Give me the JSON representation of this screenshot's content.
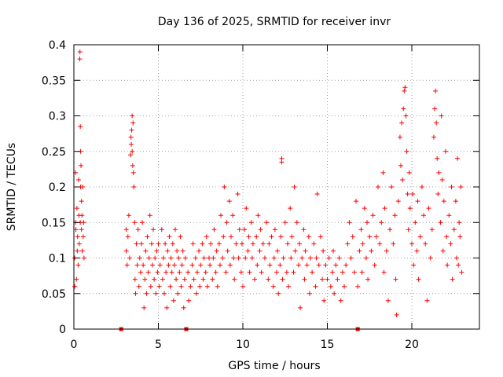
{
  "chart_data": {
    "type": "scatter",
    "title": "Day 136 of 2025, SRMTID for receiver invr",
    "xlabel": "GPS time / hours",
    "ylabel": "SRMTID / TECUs",
    "xlim": [
      0,
      24
    ],
    "ylim": [
      0,
      0.4
    ],
    "grid": true,
    "marker": "+",
    "color": "#ff0000",
    "x_ticks": [
      {
        "value": 0,
        "label": "0"
      },
      {
        "value": 5,
        "label": "5"
      },
      {
        "value": 10,
        "label": "10"
      },
      {
        "value": 15,
        "label": "15"
      },
      {
        "value": 20,
        "label": "20"
      }
    ],
    "y_ticks": [
      {
        "value": 0,
        "label": "0"
      },
      {
        "value": 0.05,
        "label": "0.05"
      },
      {
        "value": 0.1,
        "label": "0.1"
      },
      {
        "value": 0.15,
        "label": "0.15"
      },
      {
        "value": 0.2,
        "label": "0.2"
      },
      {
        "value": 0.25,
        "label": "0.25"
      },
      {
        "value": 0.3,
        "label": "0.3"
      },
      {
        "value": 0.35,
        "label": "0.35"
      },
      {
        "value": 0.4,
        "label": "0.4"
      }
    ],
    "data_gap_markers_x": [
      2.8,
      6.65,
      16.8
    ],
    "points": [
      [
        0.05,
        0.06
      ],
      [
        0.05,
        0.1
      ],
      [
        0.1,
        0.15
      ],
      [
        0.1,
        0.22
      ],
      [
        0.12,
        0.14
      ],
      [
        0.15,
        0.07
      ],
      [
        0.18,
        0.17
      ],
      [
        0.2,
        0.11
      ],
      [
        0.22,
        0.13
      ],
      [
        0.25,
        0.09
      ],
      [
        0.28,
        0.21
      ],
      [
        0.3,
        0.16
      ],
      [
        0.32,
        0.12
      ],
      [
        0.35,
        0.38
      ],
      [
        0.36,
        0.39
      ],
      [
        0.38,
        0.285
      ],
      [
        0.38,
        0.15
      ],
      [
        0.4,
        0.2
      ],
      [
        0.4,
        0.25
      ],
      [
        0.42,
        0.23
      ],
      [
        0.45,
        0.18
      ],
      [
        0.45,
        0.14
      ],
      [
        0.48,
        0.16
      ],
      [
        0.5,
        0.11
      ],
      [
        0.52,
        0.2
      ],
      [
        0.55,
        0.13
      ],
      [
        0.58,
        0.15
      ],
      [
        0.6,
        0.1
      ],
      [
        3.1,
        0.14
      ],
      [
        3.1,
        0.11
      ],
      [
        3.15,
        0.09
      ],
      [
        3.2,
        0.13
      ],
      [
        3.25,
        0.16
      ],
      [
        3.3,
        0.1
      ],
      [
        3.35,
        0.245
      ],
      [
        3.38,
        0.27
      ],
      [
        3.4,
        0.26
      ],
      [
        3.42,
        0.28
      ],
      [
        3.45,
        0.3
      ],
      [
        3.45,
        0.25
      ],
      [
        3.48,
        0.23
      ],
      [
        3.5,
        0.29
      ],
      [
        3.52,
        0.22
      ],
      [
        3.55,
        0.2
      ],
      [
        3.6,
        0.15
      ],
      [
        3.62,
        0.07
      ],
      [
        3.65,
        0.05
      ],
      [
        3.7,
        0.12
      ],
      [
        3.75,
        0.09
      ],
      [
        3.8,
        0.14
      ],
      [
        3.85,
        0.06
      ],
      [
        3.9,
        0.1
      ],
      [
        3.95,
        0.08
      ],
      [
        4.0,
        0.12
      ],
      [
        4.05,
        0.15
      ],
      [
        4.1,
        0.09
      ],
      [
        4.15,
        0.03
      ],
      [
        4.2,
        0.07
      ],
      [
        4.25,
        0.11
      ],
      [
        4.3,
        0.05
      ],
      [
        4.35,
        0.13
      ],
      [
        4.4,
        0.08
      ],
      [
        4.45,
        0.1
      ],
      [
        4.5,
        0.16
      ],
      [
        4.55,
        0.06
      ],
      [
        4.6,
        0.12
      ],
      [
        4.65,
        0.09
      ],
      [
        4.7,
        0.14
      ],
      [
        4.75,
        0.07
      ],
      [
        4.8,
        0.1
      ],
      [
        4.85,
        0.05
      ],
      [
        4.9,
        0.11
      ],
      [
        4.95,
        0.08
      ],
      [
        5.0,
        0.12
      ],
      [
        5.05,
        0.06
      ],
      [
        5.1,
        0.09
      ],
      [
        5.2,
        0.14
      ],
      [
        5.25,
        0.07
      ],
      [
        5.3,
        0.1
      ],
      [
        5.35,
        0.05
      ],
      [
        5.4,
        0.12
      ],
      [
        5.45,
        0.08
      ],
      [
        5.5,
        0.03
      ],
      [
        5.55,
        0.11
      ],
      [
        5.6,
        0.09
      ],
      [
        5.65,
        0.13
      ],
      [
        5.7,
        0.06
      ],
      [
        5.75,
        0.1
      ],
      [
        5.8,
        0.08
      ],
      [
        5.85,
        0.12
      ],
      [
        5.9,
        0.04
      ],
      [
        5.95,
        0.09
      ],
      [
        6.0,
        0.14
      ],
      [
        6.05,
        0.07
      ],
      [
        6.1,
        0.11
      ],
      [
        6.15,
        0.05
      ],
      [
        6.2,
        0.1
      ],
      [
        6.25,
        0.08
      ],
      [
        6.3,
        0.13
      ],
      [
        6.35,
        0.06
      ],
      [
        6.4,
        0.09
      ],
      [
        6.45,
        0.11
      ],
      [
        6.5,
        0.03
      ],
      [
        6.55,
        0.07
      ],
      [
        6.6,
        0.1
      ],
      [
        6.75,
        0.08
      ],
      [
        6.8,
        0.04
      ],
      [
        6.9,
        0.06
      ],
      [
        7.0,
        0.09
      ],
      [
        7.05,
        0.12
      ],
      [
        7.1,
        0.07
      ],
      [
        7.2,
        0.1
      ],
      [
        7.25,
        0.05
      ],
      [
        7.3,
        0.08
      ],
      [
        7.4,
        0.11
      ],
      [
        7.45,
        0.06
      ],
      [
        7.5,
        0.09
      ],
      [
        7.6,
        0.12
      ],
      [
        7.65,
        0.07
      ],
      [
        7.7,
        0.1
      ],
      [
        7.8,
        0.08
      ],
      [
        7.85,
        0.13
      ],
      [
        7.9,
        0.06
      ],
      [
        8.0,
        0.1
      ],
      [
        8.05,
        0.09
      ],
      [
        8.1,
        0.12
      ],
      [
        8.2,
        0.07
      ],
      [
        8.25,
        0.1
      ],
      [
        8.3,
        0.14
      ],
      [
        8.4,
        0.08
      ],
      [
        8.45,
        0.11
      ],
      [
        8.5,
        0.06
      ],
      [
        8.6,
        0.12
      ],
      [
        8.65,
        0.09
      ],
      [
        8.7,
        0.16
      ],
      [
        8.8,
        0.1
      ],
      [
        8.85,
        0.13
      ],
      [
        8.9,
        0.2
      ],
      [
        9.0,
        0.08
      ],
      [
        9.05,
        0.15
      ],
      [
        9.1,
        0.11
      ],
      [
        9.2,
        0.18
      ],
      [
        9.25,
        0.09
      ],
      [
        9.3,
        0.13
      ],
      [
        9.4,
        0.16
      ],
      [
        9.45,
        0.1
      ],
      [
        9.5,
        0.07
      ],
      [
        9.6,
        0.12
      ],
      [
        9.7,
        0.19
      ],
      [
        9.75,
        0.1
      ],
      [
        9.8,
        0.14
      ],
      [
        9.9,
        0.08
      ],
      [
        9.95,
        0.12
      ],
      [
        10.0,
        0.06
      ],
      [
        10.1,
        0.14
      ],
      [
        10.15,
        0.1
      ],
      [
        10.2,
        0.17
      ],
      [
        10.3,
        0.11
      ],
      [
        10.35,
        0.13
      ],
      [
        10.4,
        0.08
      ],
      [
        10.5,
        0.15
      ],
      [
        10.55,
        0.1
      ],
      [
        10.6,
        0.12
      ],
      [
        10.7,
        0.07
      ],
      [
        10.8,
        0.13
      ],
      [
        10.85,
        0.09
      ],
      [
        10.9,
        0.16
      ],
      [
        11.0,
        0.11
      ],
      [
        11.05,
        0.14
      ],
      [
        11.1,
        0.08
      ],
      [
        11.2,
        0.12
      ],
      [
        11.3,
        0.1
      ],
      [
        11.4,
        0.15
      ],
      [
        11.5,
        0.07
      ],
      [
        11.55,
        0.12
      ],
      [
        11.6,
        0.09
      ],
      [
        11.7,
        0.13
      ],
      [
        11.8,
        0.06
      ],
      [
        11.85,
        0.1
      ],
      [
        11.9,
        0.14
      ],
      [
        12.0,
        0.08
      ],
      [
        12.05,
        0.11
      ],
      [
        12.1,
        0.05
      ],
      [
        12.2,
        0.09
      ],
      [
        12.25,
        0.13
      ],
      [
        12.3,
        0.24
      ],
      [
        12.3,
        0.235
      ],
      [
        12.35,
        0.07
      ],
      [
        12.4,
        0.1
      ],
      [
        12.5,
        0.15
      ],
      [
        12.6,
        0.08
      ],
      [
        12.65,
        0.12
      ],
      [
        12.7,
        0.06
      ],
      [
        12.8,
        0.17
      ],
      [
        12.85,
        0.1
      ],
      [
        12.9,
        0.13
      ],
      [
        13.0,
        0.08
      ],
      [
        13.05,
        0.2
      ],
      [
        13.1,
        0.11
      ],
      [
        13.2,
        0.15
      ],
      [
        13.3,
        0.09
      ],
      [
        13.35,
        0.12
      ],
      [
        13.4,
        0.03
      ],
      [
        13.5,
        0.1
      ],
      [
        13.6,
        0.14
      ],
      [
        13.65,
        0.07
      ],
      [
        13.7,
        0.11
      ],
      [
        13.8,
        0.09
      ],
      [
        13.9,
        0.13
      ],
      [
        13.95,
        0.05
      ],
      [
        14.0,
        0.1
      ],
      [
        14.1,
        0.08
      ],
      [
        14.2,
        0.12
      ],
      [
        14.3,
        0.06
      ],
      [
        14.35,
        0.1
      ],
      [
        14.4,
        0.19
      ],
      [
        14.5,
        0.09
      ],
      [
        14.6,
        0.13
      ],
      [
        14.7,
        0.07
      ],
      [
        14.75,
        0.11
      ],
      [
        14.8,
        0.04
      ],
      [
        14.9,
        0.09
      ],
      [
        15.0,
        0.07
      ],
      [
        15.1,
        0.1
      ],
      [
        15.2,
        0.06
      ],
      [
        15.3,
        0.08
      ],
      [
        15.35,
        0.11
      ],
      [
        15.4,
        0.05
      ],
      [
        15.5,
        0.09
      ],
      [
        15.6,
        0.07
      ],
      [
        15.7,
        0.1
      ],
      [
        15.8,
        0.04
      ],
      [
        15.9,
        0.08
      ],
      [
        16.0,
        0.06
      ],
      [
        16.1,
        0.09
      ],
      [
        16.2,
        0.12
      ],
      [
        16.3,
        0.15
      ],
      [
        16.4,
        0.1
      ],
      [
        16.5,
        0.13
      ],
      [
        16.6,
        0.08
      ],
      [
        16.7,
        0.18
      ],
      [
        16.8,
        0.06
      ],
      [
        16.9,
        0.11
      ],
      [
        17.0,
        0.14
      ],
      [
        17.05,
        0.08
      ],
      [
        17.1,
        0.12
      ],
      [
        17.2,
        0.17
      ],
      [
        17.3,
        0.1
      ],
      [
        17.35,
        0.15
      ],
      [
        17.4,
        0.07
      ],
      [
        17.5,
        0.13
      ],
      [
        17.6,
        0.11
      ],
      [
        17.7,
        0.16
      ],
      [
        17.8,
        0.09
      ],
      [
        17.9,
        0.13
      ],
      [
        18.0,
        0.2
      ],
      [
        18.1,
        0.12
      ],
      [
        18.2,
        0.15
      ],
      [
        18.3,
        0.22
      ],
      [
        18.35,
        0.08
      ],
      [
        18.4,
        0.17
      ],
      [
        18.5,
        0.11
      ],
      [
        18.6,
        0.04
      ],
      [
        18.7,
        0.14
      ],
      [
        18.8,
        0.2
      ],
      [
        18.9,
        0.12
      ],
      [
        19.0,
        0.16
      ],
      [
        19.05,
        0.07
      ],
      [
        19.1,
        0.02
      ],
      [
        19.2,
        0.18
      ],
      [
        19.3,
        0.27
      ],
      [
        19.35,
        0.23
      ],
      [
        19.4,
        0.29
      ],
      [
        19.45,
        0.21
      ],
      [
        19.5,
        0.31
      ],
      [
        19.55,
        0.335
      ],
      [
        19.6,
        0.34
      ],
      [
        19.65,
        0.3
      ],
      [
        19.7,
        0.25
      ],
      [
        19.75,
        0.19
      ],
      [
        19.8,
        0.14
      ],
      [
        19.85,
        0.22
      ],
      [
        19.9,
        0.17
      ],
      [
        20.0,
        0.12
      ],
      [
        20.05,
        0.19
      ],
      [
        20.1,
        0.09
      ],
      [
        20.2,
        0.15
      ],
      [
        20.3,
        0.11
      ],
      [
        20.35,
        0.18
      ],
      [
        20.4,
        0.07
      ],
      [
        20.5,
        0.13
      ],
      [
        20.6,
        0.2
      ],
      [
        20.7,
        0.16
      ],
      [
        20.8,
        0.12
      ],
      [
        20.9,
        0.04
      ],
      [
        21.0,
        0.17
      ],
      [
        21.1,
        0.1
      ],
      [
        21.2,
        0.14
      ],
      [
        21.3,
        0.27
      ],
      [
        21.35,
        0.31
      ],
      [
        21.4,
        0.335
      ],
      [
        21.45,
        0.29
      ],
      [
        21.5,
        0.24
      ],
      [
        21.55,
        0.19
      ],
      [
        21.6,
        0.22
      ],
      [
        21.7,
        0.15
      ],
      [
        21.75,
        0.3
      ],
      [
        21.8,
        0.21
      ],
      [
        21.85,
        0.11
      ],
      [
        21.9,
        0.18
      ],
      [
        22.0,
        0.25
      ],
      [
        22.05,
        0.13
      ],
      [
        22.1,
        0.09
      ],
      [
        22.2,
        0.16
      ],
      [
        22.3,
        0.12
      ],
      [
        22.35,
        0.2
      ],
      [
        22.4,
        0.07
      ],
      [
        22.5,
        0.14
      ],
      [
        22.6,
        0.18
      ],
      [
        22.65,
        0.1
      ],
      [
        22.7,
        0.24
      ],
      [
        22.75,
        0.09
      ],
      [
        22.8,
        0.15
      ],
      [
        22.85,
        0.13
      ],
      [
        22.9,
        0.2
      ],
      [
        22.95,
        0.08
      ]
    ]
  }
}
